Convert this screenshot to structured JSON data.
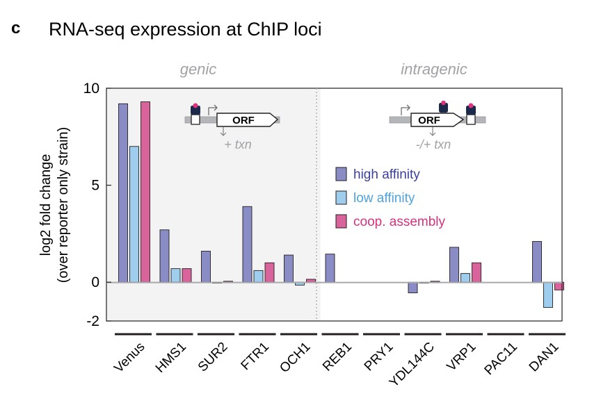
{
  "panel_label": "c",
  "chart_data": {
    "type": "bar",
    "title": "RNA-seq expression at ChIP loci",
    "ylabel_line1": "log2  fold change",
    "ylabel_line2": "(over reporter only strain)",
    "xlabel": "",
    "ylim": [
      -2,
      10
    ],
    "yticks": [
      {
        "v": 10,
        "label": "10"
      },
      {
        "v": 5,
        "label": "5"
      },
      {
        "v": 0,
        "label": "0"
      },
      {
        "v": -2,
        "label": "-2"
      }
    ],
    "grid": false,
    "legend_position": "center-right",
    "categories": [
      "Venus",
      "HMS1",
      "SUR2",
      "FTR1",
      "OCH1",
      "REB1",
      "PRY1",
      "YDL144C",
      "VRP1",
      "PAC11",
      "DAN1"
    ],
    "series": [
      {
        "name": "high affinity",
        "color": "#8a8cc6",
        "values": [
          9.2,
          2.7,
          1.6,
          3.9,
          1.4,
          1.45,
          0,
          -0.55,
          1.8,
          0,
          2.1
        ]
      },
      {
        "name": "low affinity",
        "color": "#9fcdee",
        "values": [
          7.0,
          0.7,
          -0.05,
          0.6,
          -0.15,
          0,
          0,
          -0.05,
          0.45,
          0,
          -1.3
        ]
      },
      {
        "name": "coop. assembly",
        "color": "#d9649b",
        "values": [
          9.3,
          0.7,
          0.05,
          1.0,
          0.15,
          0,
          0,
          0.05,
          1.0,
          0,
          -0.4
        ]
      }
    ],
    "legend_text_colors": [
      "#3b3f9f",
      "#4fa3dc",
      "#d8317e"
    ],
    "regions": [
      {
        "label": "genic",
        "categories": [
          "Venus",
          "HMS1",
          "SUR2",
          "FTR1",
          "OCH1"
        ],
        "shaded": true
      },
      {
        "label": "intragenic",
        "categories": [
          "REB1",
          "PRY1",
          "YDL144C",
          "VRP1",
          "PAC11",
          "DAN1"
        ],
        "shaded": false
      }
    ],
    "annotations": [
      {
        "orf_label": "ORF",
        "txn_label": "+ txn"
      },
      {
        "orf_label": "ORF",
        "txn_label": "-/+ txn"
      }
    ]
  }
}
